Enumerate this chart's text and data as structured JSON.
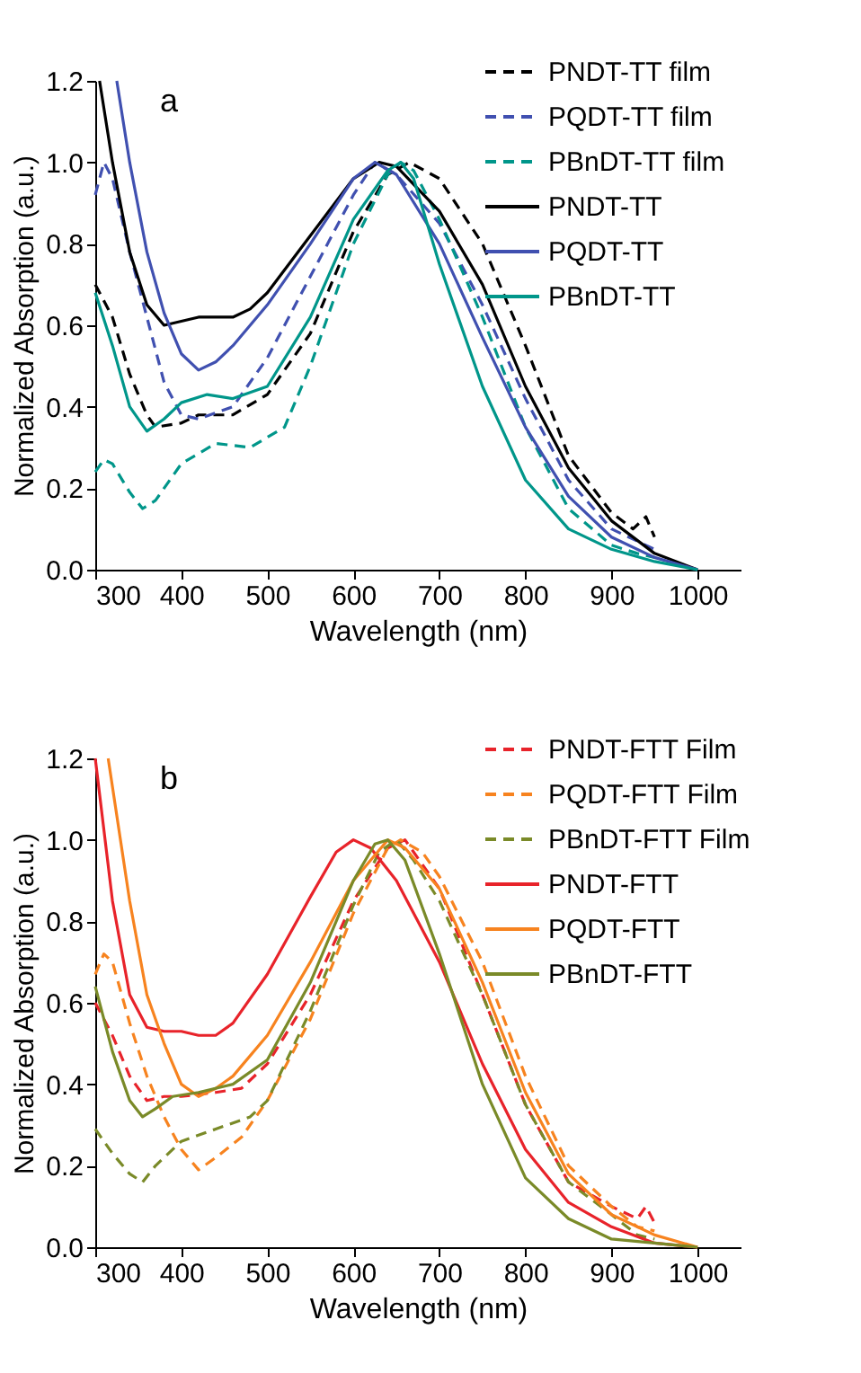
{
  "chart_data": [
    {
      "type": "line",
      "xlabel": "Wavelength (nm)",
      "ylabel": "Normalized Absorption (a.u.)",
      "annotations": [
        "a"
      ],
      "xlim": [
        300,
        1050
      ],
      "ylim": [
        0,
        1.2
      ],
      "xticks": [
        300,
        400,
        500,
        600,
        700,
        800,
        900,
        1000
      ],
      "yticks": [
        {
          "value": 0,
          "label": "0.0"
        },
        {
          "value": 0.2,
          "label": "0.2"
        },
        {
          "value": 0.4,
          "label": "0.4"
        },
        {
          "value": 0.6,
          "label": "0.6"
        },
        {
          "value": 0.8,
          "label": "0.8"
        },
        {
          "value": 1,
          "label": "1.0"
        },
        {
          "value": 1.2,
          "label": "1.2"
        }
      ],
      "grid": false,
      "legend": "top right",
      "marker": "none",
      "series": [
        {
          "name": "PNDT-TT film",
          "color": "#000000",
          "line_style": "dashed",
          "x": [
            300,
            320,
            340,
            360,
            370,
            400,
            420,
            460,
            500,
            550,
            600,
            640,
            665,
            700,
            750,
            800,
            850,
            900,
            925,
            940,
            950
          ],
          "values": [
            0.7,
            0.62,
            0.48,
            0.38,
            0.35,
            0.36,
            0.38,
            0.38,
            0.43,
            0.58,
            0.83,
            0.97,
            1.0,
            0.96,
            0.8,
            0.55,
            0.28,
            0.14,
            0.1,
            0.13,
            0.08
          ]
        },
        {
          "name": "PQDT-TT film",
          "color": "#4050b0",
          "line_style": "dashed",
          "x": [
            300,
            310,
            320,
            340,
            360,
            380,
            400,
            420,
            460,
            500,
            550,
            600,
            625,
            650,
            700,
            750,
            800,
            850,
            900,
            930,
            950
          ],
          "values": [
            0.92,
            1.0,
            0.96,
            0.78,
            0.62,
            0.46,
            0.38,
            0.37,
            0.4,
            0.52,
            0.72,
            0.92,
            1.0,
            0.97,
            0.85,
            0.65,
            0.42,
            0.22,
            0.1,
            0.07,
            0.05
          ]
        },
        {
          "name": "PBnDT-TT film",
          "color": "#00968a",
          "line_style": "dashed",
          "x": [
            300,
            310,
            320,
            340,
            355,
            370,
            400,
            440,
            480,
            520,
            550,
            600,
            640,
            655,
            670,
            700,
            750,
            800,
            850,
            900,
            930,
            950
          ],
          "values": [
            0.24,
            0.27,
            0.26,
            0.19,
            0.15,
            0.17,
            0.26,
            0.31,
            0.3,
            0.35,
            0.5,
            0.8,
            0.97,
            1.0,
            0.98,
            0.86,
            0.62,
            0.35,
            0.15,
            0.06,
            0.04,
            0.03
          ]
        },
        {
          "name": "PNDT-TT",
          "color": "#000000",
          "line_style": "solid",
          "x": [
            305,
            320,
            340,
            360,
            380,
            400,
            420,
            460,
            480,
            500,
            550,
            600,
            630,
            650,
            700,
            750,
            800,
            850,
            900,
            950,
            1000
          ],
          "values": [
            1.2,
            1.0,
            0.78,
            0.65,
            0.6,
            0.61,
            0.62,
            0.62,
            0.64,
            0.68,
            0.82,
            0.96,
            1.0,
            0.99,
            0.88,
            0.7,
            0.45,
            0.25,
            0.12,
            0.04,
            0.0
          ]
        },
        {
          "name": "PQDT-TT",
          "color": "#4050b0",
          "line_style": "solid",
          "x": [
            325,
            340,
            360,
            380,
            400,
            420,
            440,
            460,
            500,
            550,
            600,
            625,
            650,
            700,
            750,
            800,
            850,
            900,
            950,
            1000
          ],
          "values": [
            1.2,
            1.0,
            0.78,
            0.63,
            0.53,
            0.49,
            0.51,
            0.55,
            0.65,
            0.8,
            0.96,
            1.0,
            0.97,
            0.8,
            0.57,
            0.35,
            0.18,
            0.08,
            0.03,
            0.0
          ]
        },
        {
          "name": "PBnDT-TT",
          "color": "#00968a",
          "line_style": "solid",
          "x": [
            300,
            320,
            340,
            360,
            380,
            400,
            430,
            460,
            500,
            550,
            600,
            640,
            655,
            670,
            700,
            750,
            800,
            850,
            900,
            950,
            1000
          ],
          "values": [
            0.68,
            0.55,
            0.4,
            0.34,
            0.37,
            0.41,
            0.43,
            0.42,
            0.45,
            0.62,
            0.86,
            0.98,
            1.0,
            0.96,
            0.75,
            0.45,
            0.22,
            0.1,
            0.05,
            0.02,
            0.0
          ]
        }
      ]
    },
    {
      "type": "line",
      "xlabel": "Wavelength (nm)",
      "ylabel": "Normalized Absorption (a.u.)",
      "annotations": [
        "b"
      ],
      "xlim": [
        300,
        1050
      ],
      "ylim": [
        0,
        1.2
      ],
      "xticks": [
        300,
        400,
        500,
        600,
        700,
        800,
        900,
        1000
      ],
      "yticks": [
        {
          "value": 0,
          "label": "0.0"
        },
        {
          "value": 0.2,
          "label": "0.2"
        },
        {
          "value": 0.4,
          "label": "0.4"
        },
        {
          "value": 0.6,
          "label": "0.6"
        },
        {
          "value": 0.8,
          "label": "0.8"
        },
        {
          "value": 1,
          "label": "1.0"
        },
        {
          "value": 1.2,
          "label": "1.2"
        }
      ],
      "grid": false,
      "legend": "top right",
      "marker": "none",
      "series": [
        {
          "name": "PNDT-FTT Film",
          "color": "#e8232a",
          "line_style": "dashed",
          "x": [
            300,
            320,
            340,
            360,
            380,
            400,
            440,
            470,
            500,
            550,
            600,
            640,
            660,
            700,
            750,
            800,
            850,
            900,
            930,
            940,
            950
          ],
          "values": [
            0.6,
            0.52,
            0.42,
            0.36,
            0.37,
            0.37,
            0.38,
            0.39,
            0.45,
            0.62,
            0.85,
            0.98,
            1.0,
            0.88,
            0.62,
            0.35,
            0.16,
            0.1,
            0.07,
            0.1,
            0.06
          ]
        },
        {
          "name": "PQDT-FTT Film",
          "color": "#f7831f",
          "line_style": "dashed",
          "x": [
            300,
            310,
            320,
            340,
            360,
            380,
            400,
            420,
            440,
            470,
            500,
            550,
            600,
            640,
            655,
            680,
            700,
            750,
            800,
            850,
            900,
            930,
            950
          ],
          "values": [
            0.67,
            0.72,
            0.7,
            0.55,
            0.42,
            0.32,
            0.24,
            0.19,
            0.22,
            0.27,
            0.36,
            0.56,
            0.82,
            0.98,
            1.0,
            0.97,
            0.91,
            0.7,
            0.42,
            0.2,
            0.1,
            0.05,
            0.04
          ]
        },
        {
          "name": "PBnDT-FTT Film",
          "color": "#7a8a28",
          "line_style": "dashed",
          "x": [
            300,
            320,
            340,
            355,
            370,
            400,
            440,
            480,
            500,
            550,
            600,
            630,
            650,
            670,
            700,
            750,
            800,
            850,
            900,
            930,
            950
          ],
          "values": [
            0.29,
            0.23,
            0.18,
            0.16,
            0.2,
            0.26,
            0.29,
            0.32,
            0.36,
            0.58,
            0.84,
            0.97,
            1.0,
            0.95,
            0.85,
            0.62,
            0.35,
            0.16,
            0.08,
            0.03,
            0.02
          ]
        },
        {
          "name": "PNDT-FTT",
          "color": "#e8232a",
          "line_style": "solid",
          "x": [
            300,
            320,
            340,
            360,
            380,
            400,
            420,
            440,
            460,
            500,
            550,
            580,
            600,
            620,
            650,
            700,
            750,
            800,
            850,
            900,
            950,
            1000
          ],
          "values": [
            1.2,
            0.85,
            0.62,
            0.54,
            0.53,
            0.53,
            0.52,
            0.52,
            0.55,
            0.67,
            0.86,
            0.97,
            1.0,
            0.98,
            0.9,
            0.7,
            0.45,
            0.24,
            0.11,
            0.05,
            0.01,
            0.0
          ]
        },
        {
          "name": "PQDT-FTT",
          "color": "#f7831f",
          "line_style": "solid",
          "x": [
            315,
            340,
            360,
            380,
            400,
            420,
            440,
            460,
            500,
            550,
            600,
            640,
            660,
            700,
            750,
            800,
            850,
            900,
            950,
            1000
          ],
          "values": [
            1.2,
            0.85,
            0.62,
            0.5,
            0.4,
            0.37,
            0.39,
            0.42,
            0.52,
            0.7,
            0.9,
            1.0,
            0.98,
            0.88,
            0.65,
            0.38,
            0.18,
            0.08,
            0.03,
            0.0
          ]
        },
        {
          "name": "PBnDT-FTT",
          "color": "#7a8a28",
          "line_style": "solid",
          "x": [
            300,
            320,
            340,
            355,
            370,
            390,
            420,
            460,
            500,
            550,
            600,
            625,
            640,
            660,
            700,
            750,
            800,
            850,
            900,
            950,
            1000
          ],
          "values": [
            0.64,
            0.48,
            0.36,
            0.32,
            0.34,
            0.37,
            0.38,
            0.4,
            0.46,
            0.65,
            0.9,
            0.99,
            1.0,
            0.95,
            0.72,
            0.4,
            0.17,
            0.07,
            0.02,
            0.01,
            0.0
          ]
        }
      ]
    }
  ]
}
